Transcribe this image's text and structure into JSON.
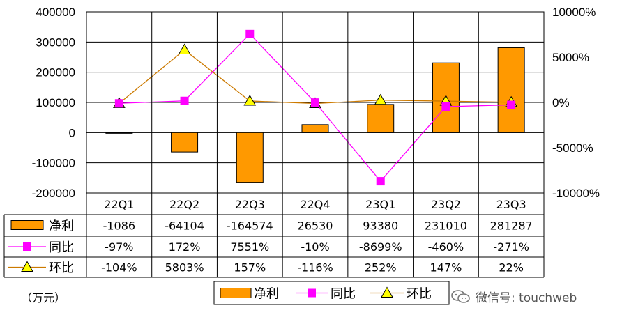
{
  "chart_data": {
    "type": "bar",
    "categories": [
      "22Q1",
      "22Q2",
      "22Q3",
      "22Q4",
      "23Q1",
      "23Q2",
      "23Q3"
    ],
    "series": [
      {
        "name": "净利",
        "kind": "bar",
        "axis": "left",
        "color": "#ff9900",
        "values": [
          -1086,
          -64104,
          -164574,
          26530,
          93380,
          231010,
          281287
        ],
        "labels": [
          "-1086",
          "-64104",
          "-164574",
          "26530",
          "93380",
          "231010",
          "281287"
        ]
      },
      {
        "name": "同比",
        "kind": "line",
        "axis": "right",
        "color": "#ff00ff",
        "marker": "square",
        "values": [
          -97,
          172,
          7551,
          -10,
          -8699,
          -460,
          -271
        ],
        "labels": [
          "-97%",
          "172%",
          "7551%",
          "-10%",
          "-8699%",
          "-460%",
          "-271%"
        ]
      },
      {
        "name": "环比",
        "kind": "line",
        "axis": "right",
        "color": "#cc7a00",
        "marker": "triangle",
        "values": [
          -104,
          5803,
          157,
          -116,
          252,
          147,
          22
        ],
        "labels": [
          "-104%",
          "5803%",
          "157%",
          "-116%",
          "252%",
          "147%",
          "22%"
        ]
      }
    ],
    "y_left": {
      "min": -200000,
      "max": 400000,
      "ticks": [
        400000,
        300000,
        200000,
        100000,
        0,
        -100000,
        -200000
      ],
      "tick_labels": [
        "400000",
        "300000",
        "200000",
        "100000",
        "0",
        "-100000",
        "-200000"
      ]
    },
    "y_right": {
      "min": -10000,
      "max": 10000,
      "ticks": [
        10000,
        5000,
        0,
        -5000,
        -10000
      ],
      "tick_labels": [
        "10000%",
        "5000%",
        "0%",
        "-5000%",
        "-10000%"
      ]
    },
    "grid": true,
    "legend_position": "bottom-right"
  },
  "unit_label": "（万元）",
  "watermark": "微信号: touchweb",
  "watermark_icon": "wechat-icon"
}
